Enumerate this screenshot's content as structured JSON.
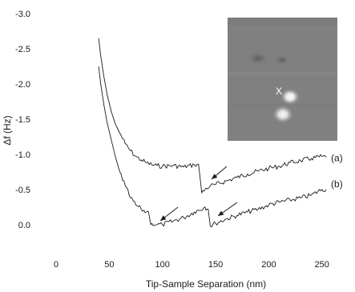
{
  "chart_data": {
    "type": "line",
    "xlabel": "Tip-Sample Separation (nm)",
    "ylabel": "Δf (Hz)",
    "xlim": [
      0,
      260
    ],
    "ylim": [
      -3.0,
      0.15
    ],
    "y_axis_inverted": true,
    "grid": false,
    "line_color": "#1a1a1a",
    "x_ticks": [
      {
        "value": 0,
        "label": "0"
      },
      {
        "value": 50,
        "label": "50"
      },
      {
        "value": 100,
        "label": "100"
      },
      {
        "value": 150,
        "label": "150"
      },
      {
        "value": 200,
        "label": "200"
      },
      {
        "value": 250,
        "label": "250"
      }
    ],
    "y_ticks": [
      {
        "value": -3.0,
        "label": "-3.0"
      },
      {
        "value": -2.5,
        "label": "-2.5"
      },
      {
        "value": -2.0,
        "label": "-2.0"
      },
      {
        "value": -1.5,
        "label": "-1.5"
      },
      {
        "value": -1.0,
        "label": "-1.0"
      },
      {
        "value": -0.5,
        "label": "-0.5"
      },
      {
        "value": 0.0,
        "label": "0.0"
      }
    ],
    "series": [
      {
        "label": "(a)",
        "x": [
          40,
          42,
          45,
          48,
          52,
          56,
          60,
          65,
          70,
          75,
          80,
          85,
          90,
          95,
          100,
          110,
          120,
          130,
          134,
          137,
          140,
          145,
          150,
          160,
          170,
          180,
          190,
          200,
          210,
          220,
          230,
          240,
          250,
          254
        ],
        "y": [
          -2.65,
          -2.4,
          -2.1,
          -1.85,
          -1.6,
          -1.42,
          -1.3,
          -1.15,
          -1.05,
          -0.97,
          -0.92,
          -0.88,
          -0.85,
          -0.84,
          -0.83,
          -0.84,
          -0.82,
          -0.85,
          -0.86,
          -0.45,
          -0.5,
          -0.55,
          -0.57,
          -0.62,
          -0.67,
          -0.72,
          -0.76,
          -0.8,
          -0.83,
          -0.88,
          -0.91,
          -0.94,
          -0.97,
          -0.96
        ]
      },
      {
        "label": "(b)",
        "x": [
          40,
          42,
          45,
          48,
          52,
          56,
          60,
          65,
          70,
          75,
          80,
          85,
          87,
          89,
          90,
          95,
          100,
          110,
          120,
          130,
          140,
          143,
          145,
          150,
          160,
          170,
          180,
          190,
          200,
          210,
          220,
          230,
          240,
          250,
          254
        ],
        "y": [
          -2.25,
          -2.0,
          -1.7,
          -1.45,
          -1.2,
          -0.95,
          -0.75,
          -0.55,
          -0.38,
          -0.28,
          -0.22,
          -0.18,
          -0.18,
          0.0,
          -0.02,
          0.0,
          0.0,
          -0.05,
          -0.1,
          -0.18,
          -0.25,
          -0.22,
          0.02,
          -0.02,
          -0.08,
          -0.13,
          -0.18,
          -0.22,
          -0.28,
          -0.32,
          -0.35,
          -0.38,
          -0.42,
          -0.5,
          -0.5
        ]
      }
    ],
    "inset": {
      "type": "image",
      "marker_label": "X"
    }
  }
}
